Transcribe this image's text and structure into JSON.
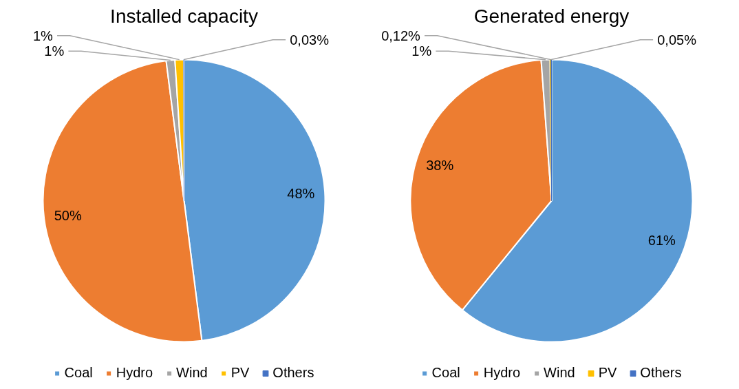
{
  "chart_data": [
    {
      "type": "pie",
      "title": "Installed capacity",
      "categories": [
        "Coal",
        "Hydro",
        "Wind",
        "PV",
        "Others"
      ],
      "values": [
        48,
        50,
        1,
        1,
        0.03
      ],
      "value_labels": [
        "48%",
        "50%",
        "1%",
        "1%",
        "0,03%"
      ],
      "colors": [
        "#5b9bd5",
        "#ed7d31",
        "#a5a5a5",
        "#ffc000",
        "#4472c4"
      ],
      "legend": "bottom"
    },
    {
      "type": "pie",
      "title": "Generated energy",
      "categories": [
        "Coal",
        "Hydro",
        "Wind",
        "PV",
        "Others"
      ],
      "values": [
        61,
        38,
        1,
        0.12,
        0.05
      ],
      "value_labels": [
        "61%",
        "38%",
        "1%",
        "0,12%",
        "0,05%"
      ],
      "colors": [
        "#5b9bd5",
        "#ed7d31",
        "#a5a5a5",
        "#ffc000",
        "#4472c4"
      ],
      "legend": "bottom"
    }
  ]
}
